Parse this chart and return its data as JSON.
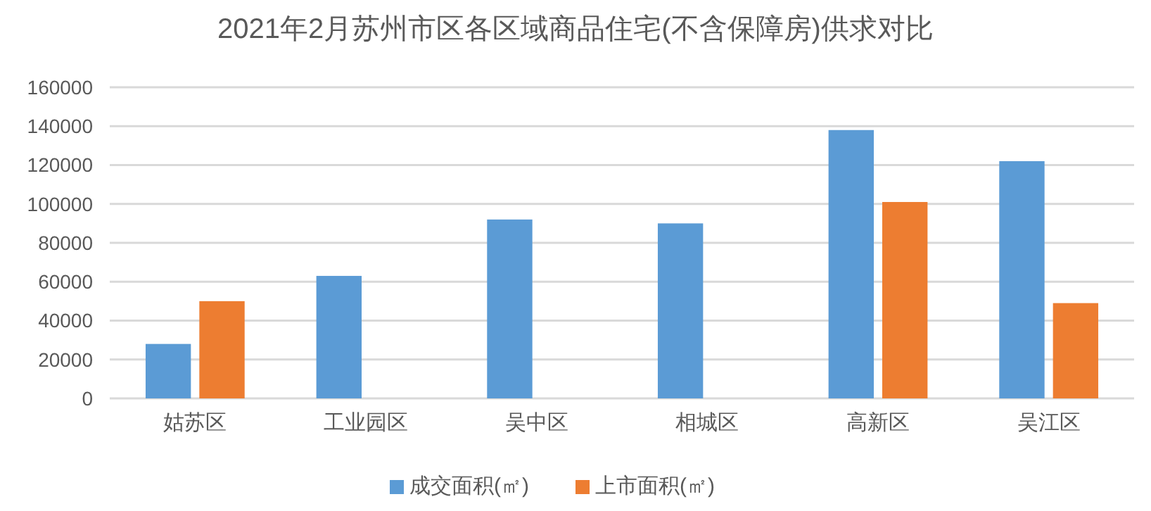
{
  "chart_data": {
    "type": "bar",
    "title": "2021年2月苏州市区各区域商品住宅(不含保障房)供求对比",
    "categories": [
      "姑苏区",
      "工业园区",
      "吴中区",
      "相城区",
      "高新区",
      "吴江区"
    ],
    "series": [
      {
        "name": "成交面积(㎡)",
        "color": "#5b9bd5",
        "values": [
          28000,
          63000,
          92000,
          90000,
          138000,
          122000
        ]
      },
      {
        "name": "上市面积(㎡)",
        "color": "#ed7d31",
        "values": [
          50000,
          null,
          null,
          null,
          101000,
          49000
        ]
      }
    ],
    "ylim": [
      0,
      160000
    ],
    "yticks": [
      0,
      20000,
      40000,
      60000,
      80000,
      100000,
      120000,
      140000,
      160000
    ],
    "grid": "y",
    "legend": "bottom"
  }
}
